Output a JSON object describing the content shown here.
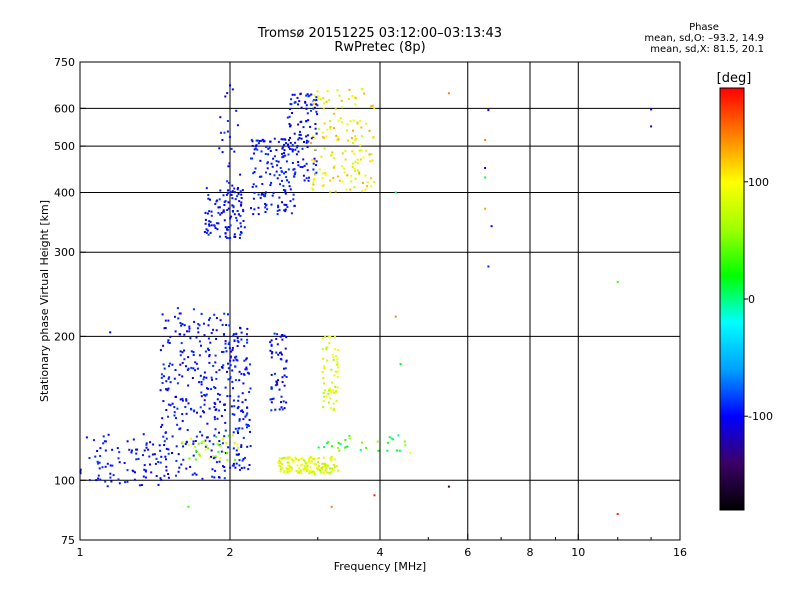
{
  "header": {
    "title_line1": "Tromsø 20151225 03:12:00–03:13:43",
    "title_line2": "RwPretec (8p)"
  },
  "phase_info": {
    "heading": "Phase",
    "line_o": "mean, sd,O: –93.2, 14.9",
    "line_x": "mean, sd,X:  81.5, 20.1"
  },
  "colorbar": {
    "label": "[deg]",
    "range": [
      -180,
      180
    ],
    "ticks": [
      {
        "value": 100,
        "label": "100"
      },
      {
        "value": 0,
        "label": "0"
      },
      {
        "value": -100,
        "label": "-100"
      }
    ],
    "colors": [
      "#000000",
      "#3b0066",
      "#0000ff",
      "#00a0ff",
      "#00ffff",
      "#00ff00",
      "#a0ff00",
      "#ffff00",
      "#ff8000",
      "#ff0000"
    ]
  },
  "chart_data": {
    "type": "scatter",
    "title": "Tromsø 20151225 03:12:00–03:13:43",
    "subtitle": "RwPretec (8p)",
    "xlabel": "Frequency [MHz]",
    "ylabel": "Stationary phase Virtual Height [km]",
    "xscale": "log",
    "yscale": "log",
    "xlim": [
      1,
      16
    ],
    "ylim": [
      75,
      750
    ],
    "grid": true,
    "xticks": [
      {
        "value": 1,
        "label": "1",
        "grid": false
      },
      {
        "value": 2,
        "label": "2",
        "grid": true
      },
      {
        "value": 4,
        "label": "4",
        "grid": true
      },
      {
        "value": 6,
        "label": "6",
        "grid": true
      },
      {
        "value": 8,
        "label": "8",
        "grid": true
      },
      {
        "value": 10,
        "label": "10",
        "grid": true
      },
      {
        "value": 16,
        "label": "16",
        "grid": false
      }
    ],
    "yticks": [
      {
        "value": 75,
        "label": "75",
        "grid": false
      },
      {
        "value": 100,
        "label": "100",
        "grid": true
      },
      {
        "value": 200,
        "label": "200",
        "grid": true
      },
      {
        "value": 300,
        "label": "300",
        "grid": true
      },
      {
        "value": 400,
        "label": "400",
        "grid": true
      },
      {
        "value": 500,
        "label": "500",
        "grid": true
      },
      {
        "value": 600,
        "label": "600",
        "grid": true
      },
      {
        "value": 750,
        "label": "750",
        "grid": false
      }
    ],
    "point_groups": [
      {
        "x": [
          1.0,
          1.45
        ],
        "y": [
          97,
          125
        ],
        "phase": [
          -110,
          -85
        ],
        "count": 90
      },
      {
        "x": [
          1.45,
          2.0
        ],
        "y": [
          100,
          230
        ],
        "phase": [
          -110,
          -85
        ],
        "count": 300
      },
      {
        "x": [
          2.0,
          2.2
        ],
        "y": [
          105,
          210
        ],
        "phase": [
          -110,
          -85
        ],
        "count": 120
      },
      {
        "x": [
          2.4,
          2.6
        ],
        "y": [
          140,
          205
        ],
        "phase": [
          -110,
          -85
        ],
        "count": 60
      },
      {
        "x": [
          1.78,
          2.15
        ],
        "y": [
          320,
          410
        ],
        "phase": [
          -110,
          -85
        ],
        "count": 110
      },
      {
        "x": [
          2.2,
          2.7
        ],
        "y": [
          360,
          520
        ],
        "phase": [
          -110,
          -85
        ],
        "count": 150
      },
      {
        "x": [
          2.6,
          3.0
        ],
        "y": [
          420,
          650
        ],
        "phase": [
          -110,
          -85
        ],
        "count": 110
      },
      {
        "x": [
          1.9,
          2.1
        ],
        "y": [
          400,
          660
        ],
        "phase": [
          -110,
          -85
        ],
        "count": 25
      },
      {
        "x": [
          2.5,
          3.3
        ],
        "y": [
          103,
          112
        ],
        "phase": [
          60,
          110
        ],
        "count": 140
      },
      {
        "x": [
          3.05,
          3.3
        ],
        "y": [
          140,
          200
        ],
        "phase": [
          60,
          110
        ],
        "count": 60
      },
      {
        "x": [
          2.9,
          3.9
        ],
        "y": [
          400,
          660
        ],
        "phase": [
          70,
          130
        ],
        "count": 150
      },
      {
        "x": [
          1.6,
          2.1
        ],
        "y": [
          110,
          125
        ],
        "phase": [
          30,
          100
        ],
        "count": 40
      },
      {
        "x": [
          3.0,
          4.5
        ],
        "y": [
          115,
          125
        ],
        "phase": [
          -10,
          60
        ],
        "count": 30
      }
    ],
    "points": [
      {
        "x": 6.5,
        "y": 450,
        "phase": -110
      },
      {
        "x": 6.5,
        "y": 430,
        "phase": 10
      },
      {
        "x": 6.5,
        "y": 370,
        "phase": 130
      },
      {
        "x": 6.5,
        "y": 515,
        "phase": 140
      },
      {
        "x": 6.7,
        "y": 340,
        "phase": -110
      },
      {
        "x": 6.6,
        "y": 280,
        "phase": -90
      },
      {
        "x": 6.6,
        "y": 595,
        "phase": -110
      },
      {
        "x": 5.5,
        "y": 645,
        "phase": 140
      },
      {
        "x": 12.0,
        "y": 260,
        "phase": 30
      },
      {
        "x": 12.0,
        "y": 85,
        "phase": 170
      },
      {
        "x": 14.0,
        "y": 550,
        "phase": -120
      },
      {
        "x": 14.0,
        "y": 597,
        "phase": -100
      },
      {
        "x": 5.5,
        "y": 97,
        "phase": -150
      },
      {
        "x": 3.9,
        "y": 93,
        "phase": 170
      },
      {
        "x": 4.3,
        "y": 220,
        "phase": 140
      },
      {
        "x": 4.4,
        "y": 175,
        "phase": 20
      },
      {
        "x": 4.6,
        "y": 114,
        "phase": 100
      },
      {
        "x": 1.15,
        "y": 204,
        "phase": -100
      },
      {
        "x": 1.65,
        "y": 88,
        "phase": 40
      },
      {
        "x": 3.2,
        "y": 88,
        "phase": 140
      },
      {
        "x": 4.3,
        "y": 400,
        "phase": 0
      },
      {
        "x": 2.0,
        "y": 670,
        "phase": -100
      }
    ]
  }
}
